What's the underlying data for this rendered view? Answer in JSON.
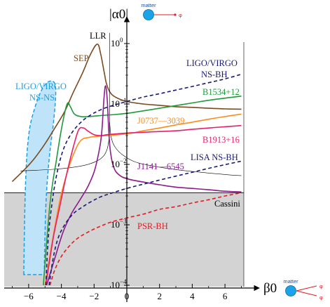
{
  "chart_data": {
    "type": "line",
    "title": "",
    "xlabel": "β0",
    "ylabel": "|α0|",
    "x_scale": "linear",
    "y_scale": "log",
    "xlim": [
      -7.2,
      7.2
    ],
    "ylim": [
      8e-05,
      1.6
    ],
    "x_ticks": [
      -6,
      -4,
      -2,
      0,
      2,
      4,
      6
    ],
    "x_tick_labels": [
      "−6",
      "−4",
      "−2",
      "0",
      "2",
      "4",
      "6"
    ],
    "y_ticks": [
      1,
      0.1,
      0.01,
      0.001,
      0.0001
    ],
    "y_tick_labels": [
      {
        "base": "10",
        "exp": "0"
      },
      {
        "base": "10",
        "exp": "−1"
      },
      {
        "base": "10",
        "exp": "−2"
      },
      {
        "base": "10",
        "exp": "−3"
      },
      {
        "base": "10",
        "exp": "−4"
      }
    ],
    "regions": [
      {
        "name": "Cassini",
        "label": "Cassini",
        "type": "upper-limit",
        "value": 0.0034,
        "color": "#d3d3d3"
      },
      {
        "name": "LIGO/VIRGO NS-NS",
        "label": [
          "LIGO/VIRGO",
          "NS-NS"
        ],
        "color": "#bfe3f8",
        "edge_color": "#1e9fe0",
        "points": [
          [
            -6.3,
            0.00015
          ],
          [
            -6.2,
            0.004
          ],
          [
            -6.0,
            0.03
          ],
          [
            -5.6,
            0.09
          ],
          [
            -5.1,
            0.19
          ],
          [
            -4.6,
            0.24
          ],
          [
            -4.35,
            0.18
          ],
          [
            -4.45,
            0.06
          ],
          [
            -4.75,
            0.012
          ],
          [
            -4.95,
            0.002
          ],
          [
            -5.05,
            0.00015
          ]
        ]
      }
    ],
    "series": [
      {
        "name": "SEP",
        "label": "SEP",
        "color": "#7b4a1e",
        "style": "solid",
        "x": [
          -7.0,
          -6.2,
          -5.6,
          -5.0,
          -4.4,
          -3.8,
          -3.3,
          -2.7,
          -2.2,
          -1.8,
          -1.6,
          -1.45,
          -1.35,
          -1.25,
          -1.05,
          -0.7,
          0,
          1,
          2,
          3,
          4,
          5,
          6,
          7
        ],
        "y": [
          0.0052,
          0.0085,
          0.013,
          0.022,
          0.04,
          0.075,
          0.15,
          0.33,
          0.68,
          0.98,
          0.68,
          0.42,
          0.3,
          0.22,
          0.16,
          0.13,
          0.11,
          0.1,
          0.095,
          0.09,
          0.088,
          0.085,
          0.083,
          0.082
        ]
      },
      {
        "name": "LLR",
        "label": "LLR",
        "color": "#000000",
        "style": "thin",
        "x": [
          -1.05,
          -1.05,
          -1.1,
          -1.2,
          -1.4,
          -1.8,
          -2.5,
          -3.5,
          -4.5,
          -5.5,
          -6.5
        ],
        "y": [
          1.5,
          0.05,
          0.025,
          0.018,
          0.014,
          0.0115,
          0.0098,
          0.0088,
          0.0083,
          0.008,
          0.0078
        ]
      },
      {
        "name": "LLR-right",
        "label": "",
        "color": "#000000",
        "style": "thin",
        "x": [
          -1.05,
          -0.95,
          -0.7,
          -0.2,
          0.5,
          1.5,
          3,
          4.5,
          6,
          7
        ],
        "y": [
          0.05,
          0.028,
          0.019,
          0.014,
          0.011,
          0.0095,
          0.0082,
          0.0074,
          0.0068,
          0.0065
        ]
      },
      {
        "name": "B1534+12",
        "label": "B1534+12",
        "color": "#1e9a3c",
        "style": "solid",
        "x": [
          -5.1,
          -4.7,
          -4.3,
          -3.95,
          -3.65,
          -3.45,
          -3.2,
          -2.8,
          -2.3,
          -1.7,
          -1,
          0,
          1,
          2,
          3,
          4,
          5,
          6,
          7
        ],
        "y": [
          0.0001,
          0.0022,
          0.012,
          0.045,
          0.1,
          0.09,
          0.068,
          0.062,
          0.062,
          0.064,
          0.066,
          0.07,
          0.077,
          0.085,
          0.094,
          0.104,
          0.115,
          0.125,
          0.135
        ]
      },
      {
        "name": "J0737-3039",
        "label": "J0737—3039",
        "color": "#ff8c1a",
        "style": "solid",
        "x": [
          -5.0,
          -4.6,
          -4.1,
          -3.6,
          -3.2,
          -2.8,
          -2.3,
          -1.8,
          -1.2,
          0,
          1,
          2,
          3,
          4,
          5,
          6,
          7
        ],
        "y": [
          0.0001,
          0.00045,
          0.0025,
          0.008,
          0.016,
          0.025,
          0.028,
          0.029,
          0.03,
          0.032,
          0.036,
          0.04,
          0.045,
          0.05,
          0.056,
          0.062,
          0.068
        ]
      },
      {
        "name": "B1913+16",
        "label": "B1913+16",
        "color": "#e8206b",
        "style": "solid",
        "x": [
          -4.95,
          -4.5,
          -4.1,
          -3.7,
          -3.3,
          -2.95,
          -2.65,
          -2.4,
          -2.0,
          -1.6,
          -1.2,
          -0.6,
          0,
          1,
          2,
          3,
          4,
          5,
          6,
          7
        ],
        "y": [
          0.0001,
          0.0006,
          0.002,
          0.0065,
          0.018,
          0.037,
          0.04,
          0.036,
          0.031,
          0.03,
          0.031,
          0.032,
          0.033,
          0.034,
          0.035,
          0.036,
          0.038,
          0.04,
          0.042,
          0.044
        ]
      },
      {
        "name": "J1141-6545",
        "label": "J1141—6545",
        "color": "#8e1b8e",
        "style": "solid",
        "x": [
          -4.9,
          -4.4,
          -3.9,
          -3.4,
          -2.9,
          -2.4,
          -2.0,
          -1.75,
          -1.55,
          -1.4,
          -1.3,
          -1.2,
          -1.1,
          -1.0,
          -0.8,
          -0.5,
          0,
          1,
          2,
          3,
          4,
          5,
          6,
          7
        ],
        "y": [
          0.0001,
          0.00028,
          0.00075,
          0.0015,
          0.0025,
          0.0042,
          0.0075,
          0.014,
          0.03,
          0.12,
          0.2,
          0.12,
          0.035,
          0.016,
          0.009,
          0.0068,
          0.0058,
          0.0051,
          0.0046,
          0.0042,
          0.004,
          0.0038,
          0.0036,
          0.0035
        ]
      },
      {
        "name": "LIGO/VIRGO NS-BH",
        "label": [
          "LIGO/VIRGO",
          "NS-BH"
        ],
        "color": "#1a1a7a",
        "style": "dashed",
        "x": [
          -4.95,
          -4.8,
          -4.6,
          -4.3,
          -3.9,
          -3.4,
          -2.8,
          -2.2,
          -1.6,
          -1,
          0,
          1,
          2,
          3,
          4,
          5,
          6,
          7
        ],
        "y": [
          0.0001,
          0.0006,
          0.002,
          0.0065,
          0.017,
          0.032,
          0.05,
          0.066,
          0.08,
          0.092,
          0.11,
          0.13,
          0.148,
          0.17,
          0.195,
          0.225,
          0.26,
          0.31
        ]
      },
      {
        "name": "LISA NS-BH",
        "label": "LISA NS-BH",
        "color": "#1a1a7a",
        "style": "dashed",
        "x": [
          -4.75,
          -4.5,
          -4.2,
          -3.8,
          -3.3,
          -2.8,
          -2.2,
          -1.6,
          -1,
          0,
          1,
          2,
          3,
          4,
          5,
          6,
          7
        ],
        "y": [
          0.0001,
          0.00028,
          0.0006,
          0.001,
          0.0015,
          0.0019,
          0.0024,
          0.0029,
          0.0033,
          0.004,
          0.0047,
          0.0055,
          0.0064,
          0.0074,
          0.0086,
          0.0099,
          0.0113
        ]
      },
      {
        "name": "PSR-BH",
        "label": "PSR-BH",
        "color": "#e51b24",
        "style": "dashed",
        "x": [
          -4.7,
          -4.4,
          -4.0,
          -3.5,
          -3.0,
          -2.4,
          -1.8,
          -1,
          0,
          1,
          2,
          3,
          4,
          5,
          6,
          7
        ],
        "y": [
          0.0001,
          0.00018,
          0.0003,
          0.00045,
          0.0006,
          0.00075,
          0.0009,
          0.0011,
          0.0013,
          0.0015,
          0.0018,
          0.002,
          0.0023,
          0.0026,
          0.003,
          0.0034
        ]
      }
    ],
    "insets": [
      {
        "name": "top",
        "label": "matter",
        "symbol": "φ"
      },
      {
        "name": "bottom",
        "label": "matter",
        "symbol": "φ"
      }
    ],
    "colors": {
      "matter": "#1aa3e8",
      "phi_line": "#e51b24"
    },
    "grid": false,
    "legend": "none"
  }
}
